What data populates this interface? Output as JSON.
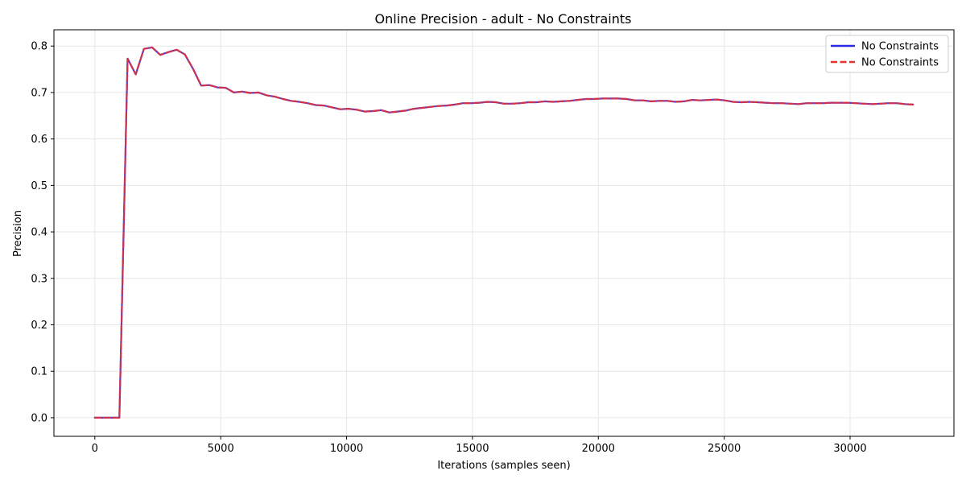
{
  "chart_data": {
    "type": "line",
    "title": "Online Precision - adult - No Constraints",
    "xlabel": "Iterations (samples seen)",
    "ylabel": "Precision",
    "xlim": [
      -1625,
      34125
    ],
    "ylim": [
      -0.04,
      0.835
    ],
    "xticks": [
      0,
      5000,
      10000,
      15000,
      20000,
      25000,
      30000
    ],
    "yticks": [
      0.0,
      0.1,
      0.2,
      0.3,
      0.4,
      0.5,
      0.6,
      0.7,
      0.8
    ],
    "xtick_labels": [
      "0",
      "5000",
      "10000",
      "15000",
      "20000",
      "25000",
      "30000"
    ],
    "ytick_labels": [
      "0.0",
      "0.1",
      "0.2",
      "0.3",
      "0.4",
      "0.5",
      "0.6",
      "0.7",
      "0.8"
    ],
    "grid": true,
    "legend_position": "top-right",
    "x": [
      0,
      325,
      650,
      975,
      1300,
      1625,
      1950,
      2275,
      2600,
      2925,
      3250,
      3575,
      3900,
      4225,
      4550,
      4875,
      5200,
      5525,
      5850,
      6175,
      6500,
      6825,
      7150,
      7475,
      7800,
      8125,
      8450,
      8775,
      9100,
      9425,
      9750,
      10075,
      10400,
      10725,
      11050,
      11375,
      11700,
      12025,
      12350,
      12675,
      13000,
      13325,
      13650,
      13975,
      14300,
      14625,
      14950,
      15275,
      15600,
      15925,
      16250,
      16575,
      16900,
      17225,
      17550,
      17875,
      18200,
      18525,
      18850,
      19175,
      19500,
      19825,
      20150,
      20475,
      20800,
      21125,
      21450,
      21775,
      22100,
      22425,
      22750,
      23075,
      23400,
      23725,
      24050,
      24375,
      24700,
      25025,
      25350,
      25675,
      26000,
      26325,
      26650,
      26975,
      27300,
      27625,
      27950,
      28275,
      28600,
      28925,
      29250,
      29575,
      29900,
      30225,
      30550,
      30875,
      31200,
      31525,
      31850,
      32175,
      32500
    ],
    "series": [
      {
        "name": "No Constraints",
        "color": "#2a2ae6",
        "style": "solid",
        "values": [
          0.0,
          0.0,
          0.0,
          0.0,
          0.773,
          0.739,
          0.794,
          0.797,
          0.781,
          0.787,
          0.792,
          0.782,
          0.751,
          0.715,
          0.716,
          0.711,
          0.71,
          0.7,
          0.702,
          0.699,
          0.7,
          0.694,
          0.691,
          0.686,
          0.682,
          0.68,
          0.677,
          0.673,
          0.672,
          0.668,
          0.664,
          0.665,
          0.663,
          0.659,
          0.66,
          0.662,
          0.657,
          0.659,
          0.661,
          0.665,
          0.667,
          0.669,
          0.671,
          0.672,
          0.674,
          0.677,
          0.677,
          0.678,
          0.68,
          0.679,
          0.676,
          0.676,
          0.677,
          0.679,
          0.679,
          0.681,
          0.68,
          0.681,
          0.682,
          0.684,
          0.686,
          0.686,
          0.687,
          0.687,
          0.687,
          0.686,
          0.683,
          0.683,
          0.681,
          0.682,
          0.682,
          0.68,
          0.681,
          0.684,
          0.683,
          0.684,
          0.685,
          0.683,
          0.68,
          0.679,
          0.68,
          0.679,
          0.678,
          0.677,
          0.677,
          0.676,
          0.675,
          0.677,
          0.677,
          0.677,
          0.678,
          0.678,
          0.678,
          0.677,
          0.676,
          0.675,
          0.676,
          0.677,
          0.677,
          0.675,
          0.674
        ]
      },
      {
        "name": "No Constraints",
        "color": "#e83030",
        "style": "dashed",
        "values": [
          0.0,
          0.0,
          0.0,
          0.0,
          0.773,
          0.739,
          0.794,
          0.797,
          0.781,
          0.787,
          0.792,
          0.782,
          0.751,
          0.715,
          0.716,
          0.711,
          0.71,
          0.7,
          0.702,
          0.699,
          0.7,
          0.694,
          0.691,
          0.686,
          0.682,
          0.68,
          0.677,
          0.673,
          0.672,
          0.668,
          0.664,
          0.665,
          0.663,
          0.659,
          0.66,
          0.662,
          0.657,
          0.659,
          0.661,
          0.665,
          0.667,
          0.669,
          0.671,
          0.672,
          0.674,
          0.677,
          0.677,
          0.678,
          0.68,
          0.679,
          0.676,
          0.676,
          0.677,
          0.679,
          0.679,
          0.681,
          0.68,
          0.681,
          0.682,
          0.684,
          0.686,
          0.686,
          0.687,
          0.687,
          0.687,
          0.686,
          0.683,
          0.683,
          0.681,
          0.682,
          0.682,
          0.68,
          0.681,
          0.684,
          0.683,
          0.684,
          0.685,
          0.683,
          0.68,
          0.679,
          0.68,
          0.679,
          0.678,
          0.677,
          0.677,
          0.676,
          0.675,
          0.677,
          0.677,
          0.677,
          0.678,
          0.678,
          0.678,
          0.677,
          0.676,
          0.675,
          0.676,
          0.677,
          0.677,
          0.675,
          0.674
        ]
      }
    ]
  }
}
